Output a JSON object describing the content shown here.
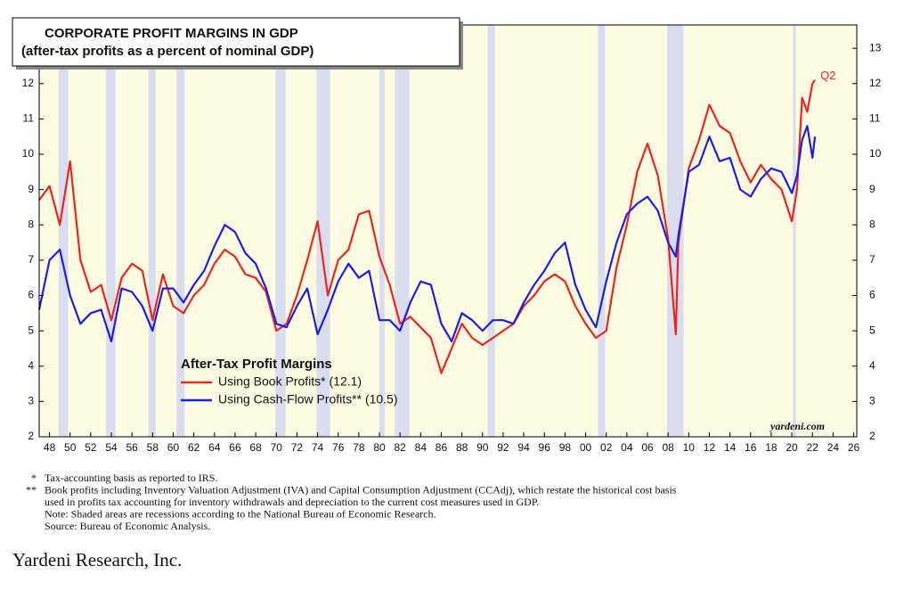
{
  "chart_data": {
    "type": "line",
    "title": "CORPORATE PROFIT MARGINS IN GDP",
    "subtitle": "(after-tax profits as a percent of nominal GDP)",
    "legend_title": "After-Tax Profit Margins",
    "annotation": "Q2",
    "watermark": "yardeni.com",
    "x": [
      1947,
      1948,
      1949,
      1950,
      1951,
      1952,
      1953,
      1954,
      1955,
      1956,
      1957,
      1958,
      1959,
      1960,
      1961,
      1962,
      1963,
      1964,
      1965,
      1966,
      1967,
      1968,
      1969,
      1970,
      1971,
      1972,
      1973,
      1974,
      1975,
      1976,
      1977,
      1978,
      1979,
      1980,
      1981,
      1982,
      1983,
      1984,
      1985,
      1986,
      1987,
      1988,
      1989,
      1990,
      1991,
      1992,
      1993,
      1994,
      1995,
      1996,
      1997,
      1998,
      1999,
      2000,
      2001,
      2002,
      2003,
      2004,
      2005,
      2006,
      2007,
      2008,
      2008.75,
      2009,
      2010,
      2011,
      2012,
      2013,
      2014,
      2015,
      2016,
      2017,
      2018,
      2019,
      2020,
      2020.5,
      2021,
      2021.5,
      2022,
      2022.25
    ],
    "series": [
      {
        "name": "Using Book Profits* (12.1)",
        "color": "#e8281e",
        "values": [
          8.7,
          9.1,
          8.0,
          9.8,
          7.0,
          6.1,
          6.3,
          5.3,
          6.5,
          6.9,
          6.7,
          5.3,
          6.6,
          5.7,
          5.5,
          6.0,
          6.3,
          6.9,
          7.3,
          7.1,
          6.6,
          6.5,
          6.1,
          5.0,
          5.2,
          6.0,
          7.0,
          8.1,
          6.0,
          7.0,
          7.3,
          8.3,
          8.4,
          7.1,
          6.3,
          5.2,
          5.4,
          5.1,
          4.8,
          3.8,
          4.5,
          5.2,
          4.8,
          4.6,
          4.8,
          5.0,
          5.2,
          5.7,
          6.0,
          6.4,
          6.6,
          6.4,
          5.7,
          5.2,
          4.8,
          5.0,
          6.8,
          8.0,
          9.5,
          10.3,
          9.4,
          7.6,
          4.9,
          7.5,
          9.6,
          10.4,
          11.4,
          10.8,
          10.6,
          9.8,
          9.2,
          9.7,
          9.3,
          9.0,
          8.1,
          9.0,
          11.6,
          11.2,
          12.0,
          12.1
        ]
      },
      {
        "name": "Using Cash-Flow Profits** (10.5)",
        "color": "#1c1ee6",
        "values": [
          5.6,
          7.0,
          7.3,
          6.0,
          5.2,
          5.5,
          5.6,
          4.7,
          6.2,
          6.1,
          5.7,
          5.0,
          6.2,
          6.2,
          5.8,
          6.3,
          6.7,
          7.4,
          8.0,
          7.8,
          7.2,
          6.9,
          6.2,
          5.2,
          5.1,
          5.7,
          6.2,
          4.9,
          5.6,
          6.4,
          6.9,
          6.5,
          6.7,
          5.3,
          5.3,
          5.0,
          5.8,
          6.4,
          6.3,
          5.2,
          4.7,
          5.5,
          5.3,
          5.0,
          5.3,
          5.3,
          5.2,
          5.8,
          6.3,
          6.7,
          7.2,
          7.5,
          6.3,
          5.6,
          5.1,
          6.4,
          7.5,
          8.3,
          8.6,
          8.8,
          8.4,
          7.5,
          7.1,
          7.7,
          9.5,
          9.7,
          10.5,
          9.8,
          9.9,
          9.0,
          8.8,
          9.3,
          9.6,
          9.5,
          8.9,
          9.4,
          10.4,
          10.8,
          9.9,
          10.5
        ]
      }
    ],
    "recessions": [
      [
        1948.9,
        1949.8
      ],
      [
        1953.5,
        1954.4
      ],
      [
        1957.6,
        1958.3
      ],
      [
        1960.3,
        1961.1
      ],
      [
        1969.9,
        1970.9
      ],
      [
        1973.9,
        1975.2
      ],
      [
        1980.0,
        1980.5
      ],
      [
        1981.5,
        1982.9
      ],
      [
        1990.5,
        1991.2
      ],
      [
        2001.2,
        2001.9
      ],
      [
        2007.9,
        2009.5
      ],
      [
        2020.1,
        2020.4
      ]
    ],
    "background_color": "#fdfbe1",
    "recession_color": "#dadcf0",
    "xlim": [
      1947,
      2026.3
    ],
    "xticks": [
      {
        "value": 1948,
        "label": "48"
      },
      {
        "value": 1950,
        "label": "50"
      },
      {
        "value": 1952,
        "label": "52"
      },
      {
        "value": 1954,
        "label": "54"
      },
      {
        "value": 1956,
        "label": "56"
      },
      {
        "value": 1958,
        "label": "58"
      },
      {
        "value": 1960,
        "label": "60"
      },
      {
        "value": 1962,
        "label": "62"
      },
      {
        "value": 1964,
        "label": "64"
      },
      {
        "value": 1966,
        "label": "66"
      },
      {
        "value": 1968,
        "label": "68"
      },
      {
        "value": 1970,
        "label": "70"
      },
      {
        "value": 1972,
        "label": "72"
      },
      {
        "value": 1974,
        "label": "74"
      },
      {
        "value": 1976,
        "label": "76"
      },
      {
        "value": 1978,
        "label": "78"
      },
      {
        "value": 1980,
        "label": "80"
      },
      {
        "value": 1982,
        "label": "82"
      },
      {
        "value": 1984,
        "label": "84"
      },
      {
        "value": 1986,
        "label": "86"
      },
      {
        "value": 1988,
        "label": "88"
      },
      {
        "value": 1990,
        "label": "90"
      },
      {
        "value": 1992,
        "label": "92"
      },
      {
        "value": 1994,
        "label": "94"
      },
      {
        "value": 1996,
        "label": "96"
      },
      {
        "value": 1998,
        "label": "98"
      },
      {
        "value": 2000,
        "label": "00"
      },
      {
        "value": 2002,
        "label": "02"
      },
      {
        "value": 2004,
        "label": "04"
      },
      {
        "value": 2006,
        "label": "06"
      },
      {
        "value": 2008,
        "label": "08"
      },
      {
        "value": 2010,
        "label": "10"
      },
      {
        "value": 2012,
        "label": "12"
      },
      {
        "value": 2014,
        "label": "14"
      },
      {
        "value": 2016,
        "label": "16"
      },
      {
        "value": 2018,
        "label": "18"
      },
      {
        "value": 2020,
        "label": "20"
      },
      {
        "value": 2022,
        "label": "22"
      },
      {
        "value": 2024,
        "label": "24"
      },
      {
        "value": 2026,
        "label": "26"
      }
    ],
    "ylim": [
      2,
      13.66
    ],
    "yticks": [
      2,
      3,
      4,
      5,
      6,
      7,
      8,
      9,
      10,
      11,
      12
    ],
    "y2lim": [
      2,
      13.66
    ],
    "y2ticks": [
      2,
      3,
      4,
      5,
      6,
      7,
      8,
      9,
      10,
      11,
      12,
      13
    ],
    "footnotes": [
      {
        "mark": "*",
        "lines": [
          "Tax-accounting basis as reported to IRS."
        ]
      },
      {
        "mark": "**",
        "lines": [
          "Book profits including Inventory Valuation Adjustment (IVA) and Capital Consumption Adjustment (CCAdj), which restate the historical cost basis",
          "used in profits tax accounting for inventory withdrawals and depreciation to the current cost measures used in GDP.",
          "Note: Shaded areas are recessions according to the National Bureau of Economic Research.",
          "Source: Bureau of Economic Analysis."
        ]
      }
    ],
    "publisher": "Yardeni Research, Inc."
  }
}
